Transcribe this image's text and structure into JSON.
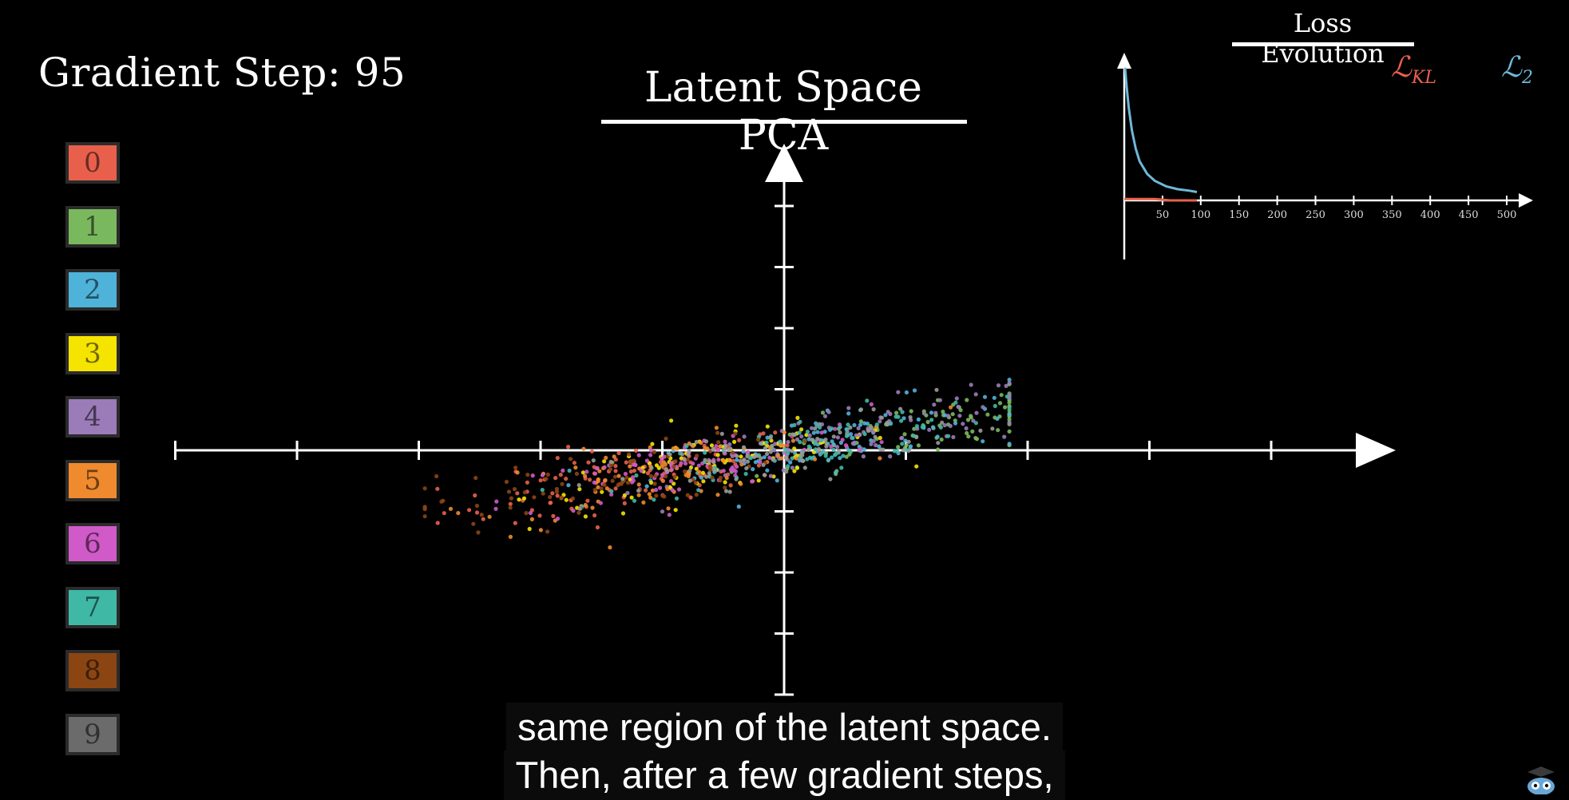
{
  "header": {
    "step_prefix": "Gradient Step:",
    "step_value": "95"
  },
  "main_chart": {
    "title": "Latent Space PCA"
  },
  "legend": {
    "items": [
      {
        "label": "0",
        "color": "#e8604c"
      },
      {
        "label": "1",
        "color": "#7ab85e"
      },
      {
        "label": "2",
        "color": "#4fb3d9"
      },
      {
        "label": "3",
        "color": "#f5e400"
      },
      {
        "label": "4",
        "color": "#9b7bb8"
      },
      {
        "label": "5",
        "color": "#f08a2e"
      },
      {
        "label": "6",
        "color": "#d05ac8"
      },
      {
        "label": "7",
        "color": "#3fb8a6"
      },
      {
        "label": "8",
        "color": "#8b4513"
      },
      {
        "label": "9",
        "color": "#6b6b6b"
      }
    ]
  },
  "loss_panel": {
    "title": "Loss Evolution",
    "kl_label": "ℒ",
    "kl_sub": "KL",
    "l2_label": "ℒ",
    "l2_sub": "2",
    "kl_color": "#e8604c",
    "l2_color": "#6fb8d8"
  },
  "subtitles": {
    "line1": "same region of the latent space.",
    "line2": "Then, after a few gradient steps,"
  },
  "chart_data": [
    {
      "type": "scatter",
      "title": "Latent Space PCA",
      "xlabel": "",
      "ylabel": "",
      "xlim": [
        -5,
        5
      ],
      "ylim": [
        -4,
        4
      ],
      "grid": false,
      "legend_placement": "left",
      "series": [
        {
          "name": "0",
          "color": "#e8604c",
          "centroid": [
            -1.3,
            -0.6
          ]
        },
        {
          "name": "1",
          "color": "#7ab85e",
          "centroid": [
            1.2,
            0.2
          ]
        },
        {
          "name": "2",
          "color": "#4fb3d9",
          "centroid": [
            0.4,
            0.0
          ]
        },
        {
          "name": "3",
          "color": "#f5e400",
          "centroid": [
            -0.6,
            -0.3
          ]
        },
        {
          "name": "4",
          "color": "#9b7bb8",
          "centroid": [
            0.7,
            0.1
          ]
        },
        {
          "name": "5",
          "color": "#f08a2e",
          "centroid": [
            -1.0,
            -0.4
          ]
        },
        {
          "name": "6",
          "color": "#d05ac8",
          "centroid": [
            -0.8,
            -0.3
          ]
        },
        {
          "name": "7",
          "color": "#3fb8a6",
          "centroid": [
            0.2,
            -0.05
          ]
        },
        {
          "name": "8",
          "color": "#8b4513",
          "centroid": [
            -1.6,
            -0.7
          ]
        },
        {
          "name": "9",
          "color": "#9a9a9a",
          "centroid": [
            0.0,
            0.0
          ]
        }
      ]
    },
    {
      "type": "line",
      "title": "Loss Evolution",
      "xlim": [
        0,
        500
      ],
      "ylim": [
        0,
        1
      ],
      "x_ticks": [
        "50",
        "100",
        "150",
        "200",
        "250",
        "300",
        "350",
        "400",
        "450",
        "500"
      ],
      "series": [
        {
          "name": "ℒ₂",
          "color": "#6fb8d8",
          "x": [
            1,
            3,
            6,
            10,
            15,
            20,
            30,
            40,
            55,
            70,
            85,
            95
          ],
          "y": [
            0.95,
            0.82,
            0.66,
            0.5,
            0.37,
            0.28,
            0.19,
            0.14,
            0.1,
            0.08,
            0.07,
            0.06
          ]
        },
        {
          "name": "ℒKL",
          "color": "#e8604c",
          "x": [
            0,
            20,
            40,
            60,
            80,
            95
          ],
          "y": [
            0.01,
            0.01,
            0.01,
            0.0,
            0.0,
            0.0
          ]
        }
      ]
    }
  ]
}
